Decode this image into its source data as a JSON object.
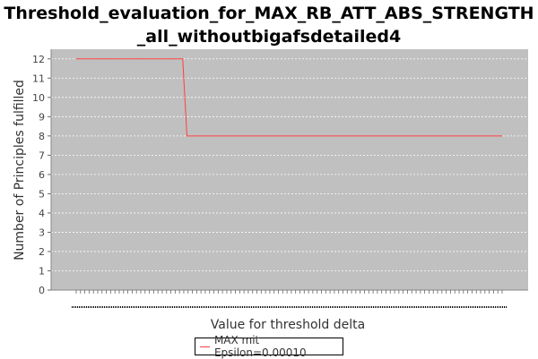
{
  "chart_data": {
    "type": "line",
    "title_line1": "Threshold_evaluation_for_MAX_RB_ATT_ABS_STRENGTH",
    "title_line2": "_all_withoutbigafsdetailed4",
    "xlabel": "Value for threshold delta",
    "ylabel": "Number of Principles fulfilled",
    "ylim": [
      0,
      12.5
    ],
    "yticks": [
      "0",
      "1",
      "2",
      "3",
      "4",
      "5",
      "6",
      "7",
      "8",
      "9",
      "10",
      "11",
      "12"
    ],
    "x_tick_count": 100,
    "grid": true,
    "legend_position": "bottom-center",
    "series": [
      {
        "name": "MAX mit Epsilon=0.00010",
        "color": "#ff4040",
        "x": [
          0,
          25,
          26,
          100
        ],
        "y": [
          12,
          12,
          8,
          8
        ]
      }
    ]
  },
  "colors": {
    "plot_background": "#c0c0c0",
    "grid": "#ffffff",
    "series": "#ff4040"
  }
}
